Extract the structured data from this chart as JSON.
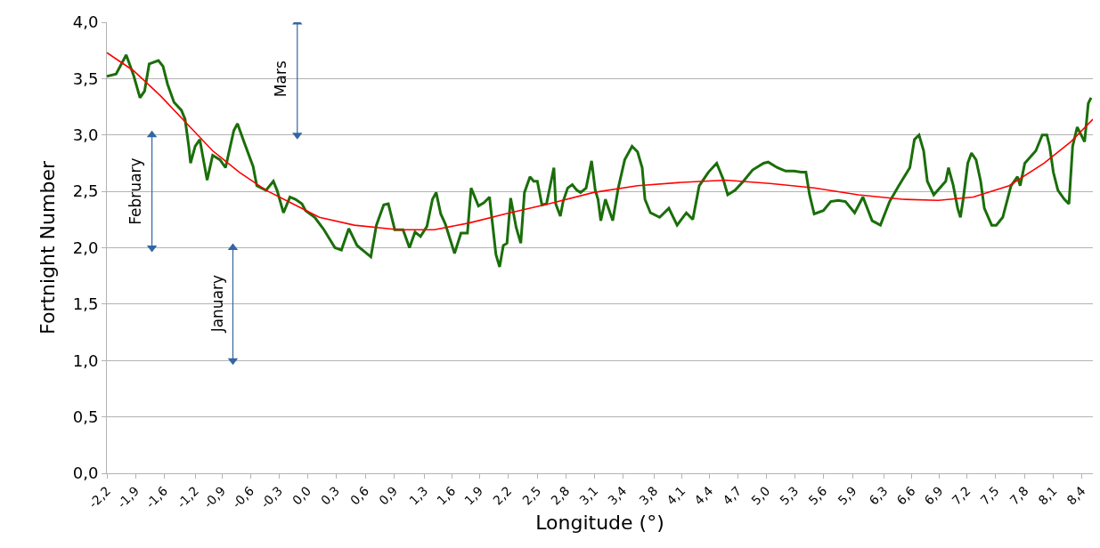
{
  "chart_data": {
    "type": "line",
    "xlabel": "Longitude (°)",
    "ylabel": "Fortnight Number",
    "xlim": [
      -2.2,
      8.52
    ],
    "ylim": [
      0,
      4
    ],
    "xticks": [
      {
        "value": -2.2,
        "label": "-2,2"
      },
      {
        "value": -1.89,
        "label": "-1,9"
      },
      {
        "value": -1.58,
        "label": "-1,6"
      },
      {
        "value": -1.24,
        "label": "-1,2"
      },
      {
        "value": -0.95,
        "label": "-0,9"
      },
      {
        "value": -0.64,
        "label": "-0,6"
      },
      {
        "value": -0.33,
        "label": "-0,3"
      },
      {
        "value": -0.02,
        "label": "0,0"
      },
      {
        "value": 0.29,
        "label": "0,3"
      },
      {
        "value": 0.61,
        "label": "0,6"
      },
      {
        "value": 0.92,
        "label": "0,9"
      },
      {
        "value": 1.25,
        "label": "1,3"
      },
      {
        "value": 1.55,
        "label": "1,6"
      },
      {
        "value": 1.85,
        "label": "1,9"
      },
      {
        "value": 2.16,
        "label": "2,2"
      },
      {
        "value": 2.48,
        "label": "2,5"
      },
      {
        "value": 2.79,
        "label": "2,8"
      },
      {
        "value": 3.1,
        "label": "3,1"
      },
      {
        "value": 3.41,
        "label": "3,4"
      },
      {
        "value": 3.75,
        "label": "3,8"
      },
      {
        "value": 4.05,
        "label": "4,1"
      },
      {
        "value": 4.35,
        "label": "4,4"
      },
      {
        "value": 4.66,
        "label": "4,7"
      },
      {
        "value": 4.97,
        "label": "5,0"
      },
      {
        "value": 5.28,
        "label": "5,3"
      },
      {
        "value": 5.59,
        "label": "5,6"
      },
      {
        "value": 5.91,
        "label": "5,9"
      },
      {
        "value": 6.25,
        "label": "6,3"
      },
      {
        "value": 6.55,
        "label": "6,6"
      },
      {
        "value": 6.85,
        "label": "6,9"
      },
      {
        "value": 7.15,
        "label": "7,2"
      },
      {
        "value": 7.46,
        "label": "7,5"
      },
      {
        "value": 7.78,
        "label": "7,8"
      },
      {
        "value": 8.09,
        "label": "8,1"
      },
      {
        "value": 8.4,
        "label": "8,4"
      }
    ],
    "yticks": [
      {
        "value": 0,
        "label": "0,0"
      },
      {
        "value": 0.5,
        "label": "0,5"
      },
      {
        "value": 1,
        "label": "1,0"
      },
      {
        "value": 1.5,
        "label": "1,5"
      },
      {
        "value": 2,
        "label": "2,0"
      },
      {
        "value": 2.5,
        "label": "2,5"
      },
      {
        "value": 3,
        "label": "3,0"
      },
      {
        "value": 3.5,
        "label": "3,5"
      },
      {
        "value": 4,
        "label": "4,0"
      }
    ],
    "grid": "y",
    "marker": "none",
    "line_style": "solid",
    "series": [
      {
        "color": "#1a6e0a",
        "x": [
          -2.2,
          -2.1,
          -1.99,
          -1.91,
          -1.84,
          -1.79,
          -1.74,
          -1.64,
          -1.59,
          -1.54,
          -1.47,
          -1.39,
          -1.35,
          -1.31,
          -1.29,
          -1.24,
          -1.19,
          -1.11,
          -1.05,
          -0.97,
          -0.91,
          -0.82,
          -0.78,
          -0.71,
          -0.61,
          -0.57,
          -0.47,
          -0.39,
          -0.35,
          -0.28,
          -0.21,
          -0.15,
          -0.08,
          -0.04,
          0.06,
          0.16,
          0.28,
          0.35,
          0.43,
          0.52,
          0.61,
          0.67,
          0.73,
          0.81,
          0.86,
          0.93,
          1.02,
          1.09,
          1.15,
          1.21,
          1.28,
          1.34,
          1.38,
          1.43,
          1.48,
          1.58,
          1.65,
          1.72,
          1.76,
          1.84,
          1.9,
          1.96,
          2.03,
          2.07,
          2.11,
          2.15,
          2.19,
          2.25,
          2.3,
          2.34,
          2.4,
          2.44,
          2.48,
          2.53,
          2.58,
          2.62,
          2.66,
          2.68,
          2.73,
          2.76,
          2.81,
          2.86,
          2.91,
          2.95,
          3.01,
          3.07,
          3.11,
          3.14,
          3.17,
          3.22,
          3.3,
          3.36,
          3.43,
          3.51,
          3.57,
          3.62,
          3.65,
          3.71,
          3.81,
          3.91,
          4.0,
          4.1,
          4.17,
          4.24,
          4.34,
          4.43,
          4.5,
          4.55,
          4.63,
          4.72,
          4.82,
          4.94,
          4.99,
          5.09,
          5.18,
          5.27,
          5.35,
          5.4,
          5.44,
          5.49,
          5.59,
          5.67,
          5.75,
          5.83,
          5.93,
          6.02,
          6.12,
          6.21,
          6.31,
          6.41,
          6.5,
          6.53,
          6.58,
          6.63,
          6.68,
          6.72,
          6.79,
          6.92,
          6.95,
          7.0,
          7.05,
          7.08,
          7.11,
          7.16,
          7.2,
          7.25,
          7.3,
          7.34,
          7.42,
          7.47,
          7.54,
          7.63,
          7.7,
          7.73,
          7.78,
          7.9,
          7.97,
          8.02,
          8.05,
          8.09,
          8.14,
          8.21,
          8.26,
          8.3,
          8.35,
          8.38,
          8.43,
          8.47,
          8.5
        ],
        "values": [
          3.52,
          3.54,
          3.71,
          3.53,
          3.33,
          3.39,
          3.63,
          3.66,
          3.61,
          3.45,
          3.29,
          3.22,
          3.14,
          2.9,
          2.75,
          2.9,
          2.96,
          2.6,
          2.82,
          2.78,
          2.71,
          3.04,
          3.1,
          2.94,
          2.72,
          2.55,
          2.51,
          2.59,
          2.51,
          2.31,
          2.45,
          2.43,
          2.39,
          2.33,
          2.27,
          2.16,
          2.0,
          1.98,
          2.17,
          2.02,
          1.96,
          1.92,
          2.2,
          2.38,
          2.39,
          2.16,
          2.16,
          2.0,
          2.14,
          2.1,
          2.19,
          2.43,
          2.49,
          2.3,
          2.21,
          1.95,
          2.13,
          2.13,
          2.53,
          2.37,
          2.4,
          2.45,
          1.94,
          1.83,
          2.02,
          2.04,
          2.44,
          2.18,
          2.04,
          2.49,
          2.63,
          2.59,
          2.59,
          2.38,
          2.39,
          2.55,
          2.71,
          2.39,
          2.28,
          2.41,
          2.53,
          2.56,
          2.51,
          2.49,
          2.53,
          2.77,
          2.51,
          2.43,
          2.24,
          2.43,
          2.24,
          2.53,
          2.78,
          2.9,
          2.85,
          2.71,
          2.43,
          2.31,
          2.27,
          2.35,
          2.2,
          2.31,
          2.25,
          2.55,
          2.67,
          2.75,
          2.61,
          2.47,
          2.51,
          2.59,
          2.69,
          2.75,
          2.76,
          2.71,
          2.68,
          2.68,
          2.67,
          2.67,
          2.47,
          2.3,
          2.33,
          2.41,
          2.42,
          2.41,
          2.31,
          2.45,
          2.24,
          2.2,
          2.41,
          2.55,
          2.67,
          2.71,
          2.96,
          3.0,
          2.86,
          2.59,
          2.47,
          2.59,
          2.71,
          2.56,
          2.35,
          2.27,
          2.43,
          2.75,
          2.84,
          2.78,
          2.59,
          2.35,
          2.2,
          2.2,
          2.27,
          2.55,
          2.63,
          2.55,
          2.75,
          2.86,
          3.0,
          3.0,
          2.9,
          2.67,
          2.51,
          2.43,
          2.39,
          2.9,
          3.07,
          3.02,
          2.94,
          3.28,
          3.33
        ]
      },
      {
        "color": "#ff0000",
        "x": [
          -2.2,
          -1.91,
          -1.62,
          -1.33,
          -1.05,
          -0.76,
          -0.47,
          -0.18,
          0.11,
          0.49,
          0.97,
          1.36,
          1.74,
          2.13,
          2.61,
          3.09,
          3.57,
          4.05,
          4.53,
          5.01,
          5.49,
          5.97,
          6.45,
          6.84,
          7.22,
          7.61,
          7.99,
          8.28,
          8.52
        ],
        "values": [
          3.73,
          3.57,
          3.35,
          3.1,
          2.86,
          2.67,
          2.51,
          2.39,
          2.27,
          2.2,
          2.16,
          2.16,
          2.22,
          2.3,
          2.39,
          2.49,
          2.55,
          2.58,
          2.6,
          2.57,
          2.53,
          2.47,
          2.43,
          2.42,
          2.45,
          2.55,
          2.75,
          2.94,
          3.14
        ]
      },
      {
        "color": "#3465a4",
        "marker": "triangle",
        "x": [
          -0.13,
          -0.13
        ],
        "values": [
          3,
          4
        ]
      },
      {
        "color": "#3465a4",
        "marker": "triangle",
        "x": [
          -1.71,
          -1.71
        ],
        "values": [
          2,
          3
        ]
      },
      {
        "color": "#3465a4",
        "marker": "triangle",
        "x": [
          -0.83,
          -0.83
        ],
        "values": [
          1,
          2
        ]
      }
    ],
    "annotations": [
      {
        "text": "Mars",
        "x": -0.13,
        "y": 3.5
      },
      {
        "text": "February",
        "x": -1.71,
        "y": 2.5
      },
      {
        "text": "January",
        "x": -0.83,
        "y": 1.5
      }
    ]
  }
}
